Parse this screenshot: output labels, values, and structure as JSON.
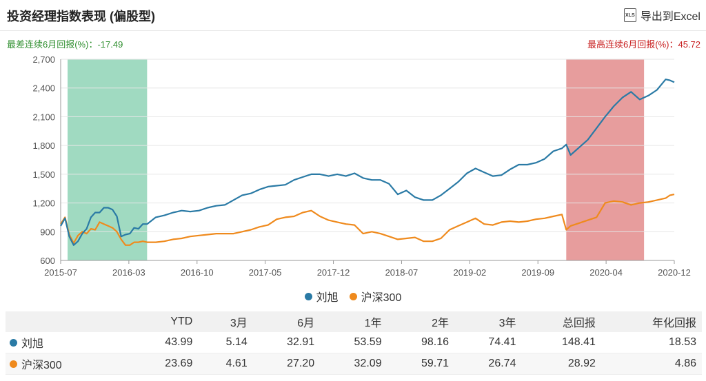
{
  "header": {
    "title": "投资经理指数表现 (偏股型)",
    "export_label": "导出到Excel",
    "export_icon": "xls-icon",
    "export_icon_text": "XLS"
  },
  "stats": {
    "worst": "最差连续6月回报(%)：-17.49",
    "best": "最高连续6月回报(%)：45.72"
  },
  "colors": {
    "manager": "#2a7aa5",
    "index": "#ef8a1d",
    "worst_band": "#8fd3b6",
    "best_band": "#e38c8c"
  },
  "chart_data": {
    "type": "line",
    "x_range": [
      "2015-07",
      "2020-12"
    ],
    "x_ticks": [
      "2015-07",
      "2016-03",
      "2016-10",
      "2017-05",
      "2017-12",
      "2018-07",
      "2019-02",
      "2019-09",
      "2020-04",
      "2020-12"
    ],
    "ylim": [
      600,
      2700
    ],
    "y_ticks": [
      "600",
      "900",
      "1,200",
      "1,500",
      "1,800",
      "2,100",
      "2,400",
      "2,700"
    ],
    "grid": true,
    "legend_position": "bottom",
    "highlight_bands": [
      {
        "name": "worst-6-month",
        "start": 0.8,
        "end": 10.0
      },
      {
        "name": "best-6-month",
        "start": 58.5,
        "end": 67.5
      }
    ],
    "series": [
      {
        "name": "刘旭",
        "x": [
          0,
          0.5,
          1,
          1.5,
          2,
          2.5,
          3,
          3.5,
          4,
          4.5,
          5,
          5.5,
          6,
          6.5,
          7,
          7.5,
          8,
          8.5,
          9,
          9.5,
          10,
          11,
          12,
          13,
          14,
          15,
          16,
          17,
          18,
          19,
          20,
          21,
          22,
          23,
          24,
          25,
          26,
          27,
          28,
          29,
          30,
          31,
          32,
          33,
          34,
          35,
          36,
          37,
          38,
          39,
          40,
          41,
          42,
          43,
          44,
          45,
          46,
          47,
          48,
          49,
          50,
          51,
          52,
          53,
          54,
          55,
          56,
          57,
          58,
          58.5,
          59,
          60,
          61,
          62,
          63,
          64,
          65,
          66,
          67,
          68,
          69,
          70,
          70.5,
          71
        ],
        "values": [
          960,
          1040,
          850,
          760,
          800,
          880,
          930,
          1050,
          1100,
          1100,
          1150,
          1150,
          1130,
          1060,
          850,
          870,
          880,
          940,
          930,
          980,
          980,
          1050,
          1070,
          1100,
          1120,
          1110,
          1120,
          1150,
          1170,
          1180,
          1230,
          1280,
          1300,
          1340,
          1370,
          1380,
          1390,
          1440,
          1470,
          1500,
          1500,
          1480,
          1500,
          1480,
          1510,
          1460,
          1440,
          1440,
          1400,
          1290,
          1330,
          1260,
          1230,
          1230,
          1280,
          1350,
          1420,
          1510,
          1560,
          1520,
          1480,
          1490,
          1550,
          1600,
          1600,
          1620,
          1660,
          1740,
          1770,
          1810,
          1700,
          1780,
          1860,
          1980,
          2100,
          2210,
          2300,
          2360,
          2280,
          2320,
          2380,
          2490,
          2480,
          2460
        ]
      },
      {
        "name": "沪深300",
        "x": [
          0,
          0.5,
          1,
          1.5,
          2,
          2.5,
          3,
          3.5,
          4,
          4.5,
          5,
          5.5,
          6,
          6.5,
          7,
          7.5,
          8,
          8.5,
          9,
          9.5,
          10,
          11,
          12,
          13,
          14,
          15,
          16,
          17,
          18,
          19,
          20,
          21,
          22,
          23,
          24,
          25,
          26,
          27,
          28,
          29,
          30,
          31,
          32,
          33,
          34,
          35,
          36,
          37,
          38,
          39,
          40,
          41,
          42,
          43,
          44,
          45,
          46,
          47,
          48,
          49,
          50,
          51,
          52,
          53,
          54,
          55,
          56,
          57,
          58,
          58.5,
          59,
          60,
          61,
          62,
          63,
          64,
          65,
          66,
          67,
          68,
          69,
          70,
          70.5,
          71
        ],
        "values": [
          980,
          1050,
          870,
          780,
          860,
          900,
          880,
          930,
          920,
          1000,
          980,
          960,
          940,
          900,
          820,
          760,
          760,
          790,
          790,
          800,
          790,
          790,
          800,
          820,
          830,
          850,
          860,
          870,
          880,
          880,
          880,
          900,
          920,
          950,
          970,
          1030,
          1050,
          1060,
          1100,
          1120,
          1060,
          1020,
          1000,
          980,
          970,
          880,
          900,
          880,
          850,
          820,
          830,
          840,
          800,
          800,
          830,
          920,
          960,
          1000,
          1040,
          980,
          970,
          1000,
          1010,
          1000,
          1010,
          1030,
          1040,
          1060,
          1080,
          920,
          960,
          990,
          1020,
          1050,
          1200,
          1220,
          1210,
          1180,
          1200,
          1210,
          1230,
          1250,
          1280,
          1290
        ]
      }
    ]
  },
  "table": {
    "headers": [
      "",
      "YTD",
      "3月",
      "6月",
      "1年",
      "2年",
      "3年",
      "总回报",
      "年化回报"
    ],
    "rows": [
      {
        "name": "刘旭",
        "values": [
          "43.99",
          "5.14",
          "32.91",
          "53.59",
          "98.16",
          "74.41",
          "148.41",
          "18.53"
        ]
      },
      {
        "name": "沪深300",
        "values": [
          "23.69",
          "4.61",
          "27.20",
          "32.09",
          "59.71",
          "26.74",
          "28.92",
          "4.86"
        ]
      }
    ]
  }
}
